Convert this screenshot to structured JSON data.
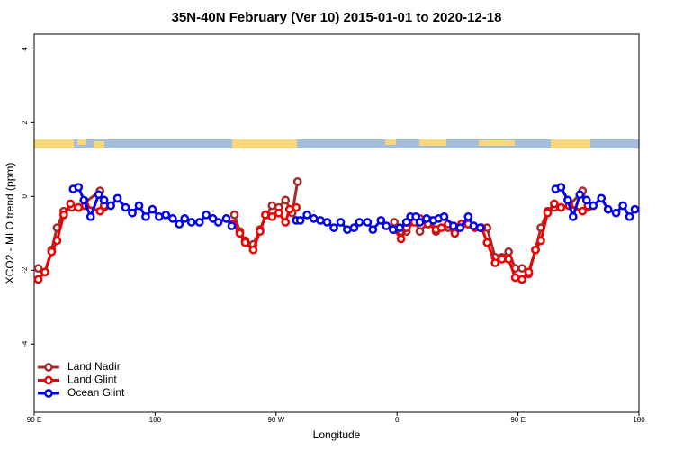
{
  "chart_data": {
    "type": "line",
    "title": "35N-40N February (Ver 10)   2015-01-01 to 2020-12-18",
    "x_label": "Longitude",
    "y_label": "XCO2 - MLO trend (ppm)",
    "xlim": [
      90,
      540
    ],
    "ylim": [
      -5.85,
      4.4
    ],
    "xticks": [
      {
        "value": 90,
        "label": "90 E"
      },
      {
        "value": 180,
        "label": "180"
      },
      {
        "value": 270,
        "label": "90 W"
      },
      {
        "value": 360,
        "label": "0"
      },
      {
        "value": 450,
        "label": "90 E"
      },
      {
        "value": 540,
        "label": "180"
      }
    ],
    "yticks": [
      -4,
      -2,
      0,
      2,
      4
    ],
    "legend": "bottom-left",
    "series": [
      {
        "name": "Land Nadir",
        "color": "#a52a2a",
        "x": [
          93,
          98,
          103,
          107,
          112,
          118,
          123,
          139,
          142,
          null,
          239,
          243,
          247,
          253,
          258,
          263,
          267,
          272,
          277,
          282,
          286,
          null,
          358,
          363,
          367,
          373,
          377,
          385,
          389,
          398,
          403,
          413,
          427,
          433,
          438,
          443,
          448,
          453,
          458,
          463,
          467,
          472,
          477,
          482,
          488,
          498,
          502
        ],
        "values": [
          -1.95,
          -2.05,
          -1.45,
          -0.85,
          -0.4,
          -0.3,
          -0.3,
          0.15,
          -0.3,
          null,
          -0.5,
          -0.95,
          -1.2,
          -1.3,
          -0.9,
          -0.5,
          -0.25,
          -0.3,
          -0.1,
          -0.45,
          0.4,
          null,
          -0.7,
          -0.95,
          -0.95,
          -0.65,
          -0.95,
          -0.65,
          -0.95,
          -0.85,
          -0.95,
          -0.75,
          -0.85,
          -1.65,
          -1.65,
          -1.5,
          -1.95,
          -1.95,
          -2.1,
          -1.45,
          -0.85,
          -0.4,
          -0.3,
          -0.3,
          -0.25,
          0.15,
          -0.3
        ]
      },
      {
        "name": "Land Glint",
        "color": "#ee0000",
        "x": [
          93,
          98,
          103,
          107,
          112,
          117,
          123,
          128,
          139,
          142,
          null,
          238,
          243,
          247,
          253,
          258,
          262,
          267,
          272,
          277,
          280,
          285,
          null,
          358,
          363,
          367,
          373,
          377,
          383,
          389,
          393,
          398,
          403,
          408,
          413,
          418,
          423,
          427,
          433,
          438,
          443,
          448,
          453,
          458,
          463,
          467,
          472,
          477,
          482,
          488,
          498,
          502
        ],
        "values": [
          -2.25,
          -2.05,
          -1.5,
          -1.2,
          -0.5,
          -0.2,
          -0.3,
          -0.25,
          -0.4,
          -0.25,
          null,
          -0.75,
          -1.0,
          -1.25,
          -1.45,
          -0.95,
          -0.5,
          -0.55,
          -0.45,
          -0.7,
          -0.35,
          -0.3,
          null,
          -0.9,
          -1.15,
          -0.85,
          -0.7,
          -0.6,
          -0.75,
          -0.9,
          -0.85,
          -0.75,
          -1.0,
          -0.75,
          -0.75,
          -0.85,
          -0.85,
          -1.25,
          -1.8,
          -1.7,
          -1.7,
          -2.2,
          -2.25,
          -2.05,
          -1.45,
          -1.2,
          -0.45,
          -0.2,
          -0.3,
          -0.25,
          -0.4,
          -0.25
        ]
      },
      {
        "name": "Ocean Glint",
        "color": "#0000ee",
        "x": [
          119,
          123,
          127,
          132,
          138,
          142,
          147,
          152,
          158,
          163,
          168,
          173,
          178,
          183,
          188,
          193,
          198,
          202,
          207,
          213,
          218,
          223,
          227,
          233,
          237,
          null,
          285,
          288,
          293,
          298,
          303,
          308,
          313,
          318,
          323,
          328,
          332,
          338,
          342,
          348,
          352,
          357,
          362,
          367,
          370,
          374,
          377,
          382,
          387,
          391,
          395,
          402,
          407,
          413,
          417,
          422,
          null,
          478,
          482,
          487,
          491,
          496,
          501,
          506,
          512,
          517,
          523,
          528,
          533,
          537
        ],
        "values": [
          0.2,
          0.25,
          -0.1,
          -0.55,
          0.05,
          -0.1,
          -0.25,
          -0.05,
          -0.3,
          -0.45,
          -0.25,
          -0.55,
          -0.35,
          -0.55,
          -0.5,
          -0.6,
          -0.75,
          -0.6,
          -0.7,
          -0.7,
          -0.5,
          -0.6,
          -0.7,
          -0.6,
          -0.8,
          null,
          -0.65,
          -0.65,
          -0.5,
          -0.6,
          -0.65,
          -0.7,
          -0.85,
          -0.7,
          -0.9,
          -0.85,
          -0.7,
          -0.7,
          -0.9,
          -0.65,
          -0.8,
          -0.9,
          -0.85,
          -0.7,
          -0.55,
          -0.55,
          -0.7,
          -0.6,
          -0.65,
          -0.6,
          -0.55,
          -0.8,
          -0.85,
          -0.55,
          -0.8,
          -0.85,
          null,
          0.2,
          0.25,
          -0.1,
          -0.55,
          0.05,
          -0.1,
          -0.25,
          -0.05,
          -0.35,
          -0.45,
          -0.25,
          -0.55,
          -0.35
        ]
      }
    ]
  }
}
